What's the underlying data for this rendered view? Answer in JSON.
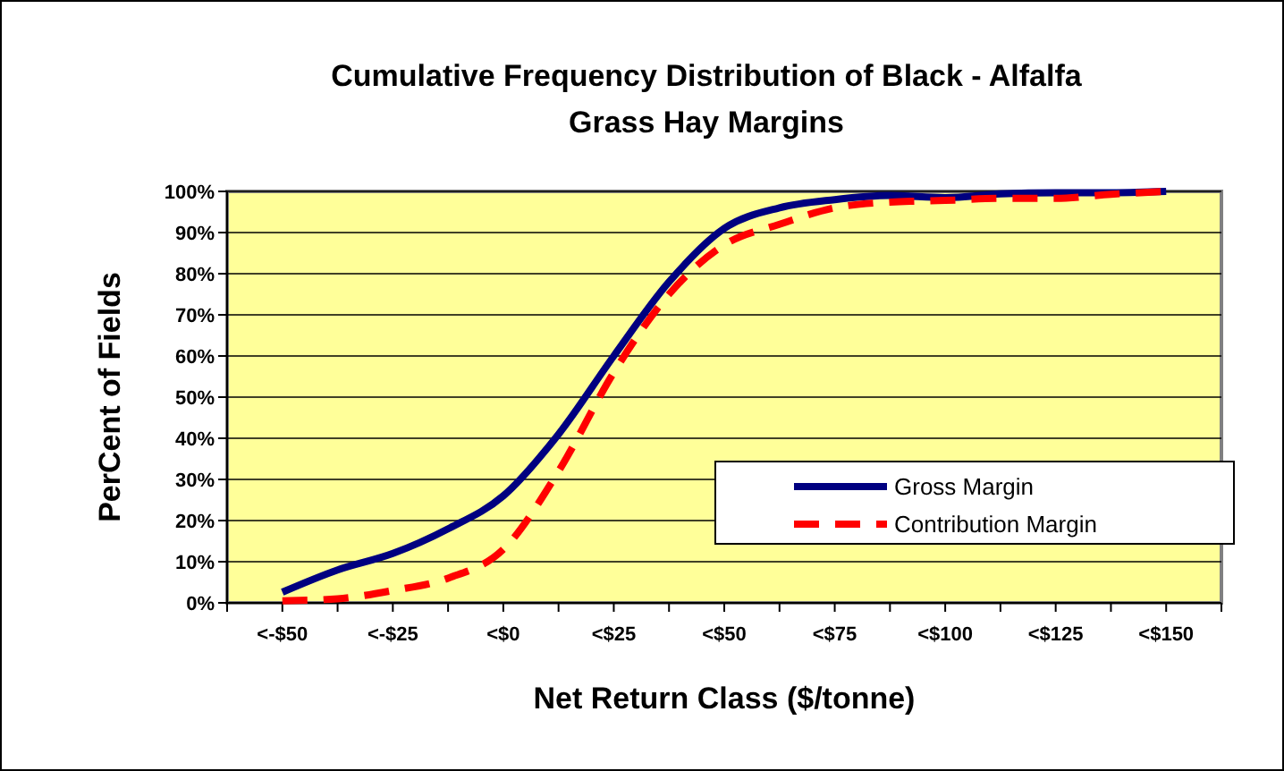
{
  "chart_data": {
    "type": "line",
    "title": "Cumulative Frequency Distribution of Black - Alfalfa Grass Hay Margins",
    "xlabel": "Net Return Class ($/tonne)",
    "ylabel": "PerCent of Fields",
    "categories": [
      "<-$50",
      null,
      "<-$25",
      null,
      "<$0",
      null,
      "<$25",
      null,
      "<$50",
      null,
      "<$75",
      null,
      "<$100",
      null,
      "<$125",
      null,
      "<$150"
    ],
    "series": [
      {
        "name": "Gross Margin",
        "color": "#000080",
        "line_style": "solid",
        "values": [
          2.6,
          8,
          12,
          18,
          26,
          41,
          60,
          78,
          91,
          96,
          98,
          99,
          98.5,
          99.4,
          99.7,
          99.7,
          100
        ]
      },
      {
        "name": "Contribution Margin",
        "color": "#ff0000",
        "line_style": "dashed",
        "values": [
          0.5,
          1,
          3,
          6,
          13,
          32,
          56,
          75,
          87,
          92,
          96,
          97.4,
          97.8,
          98.3,
          98.3,
          99.3,
          100
        ]
      }
    ],
    "ylim": [
      0,
      100
    ],
    "yticks": [
      {
        "value": 0,
        "label": "0%"
      },
      {
        "value": 10,
        "label": "10%"
      },
      {
        "value": 20,
        "label": "20%"
      },
      {
        "value": 30,
        "label": "30%"
      },
      {
        "value": 40,
        "label": "40%"
      },
      {
        "value": 50,
        "label": "50%"
      },
      {
        "value": 60,
        "label": "60%"
      },
      {
        "value": 70,
        "label": "70%"
      },
      {
        "value": 80,
        "label": "80%"
      },
      {
        "value": 90,
        "label": "90%"
      },
      {
        "value": 100,
        "label": "100%"
      }
    ],
    "grid": "y",
    "legend": "bottom right",
    "marker": "none"
  }
}
